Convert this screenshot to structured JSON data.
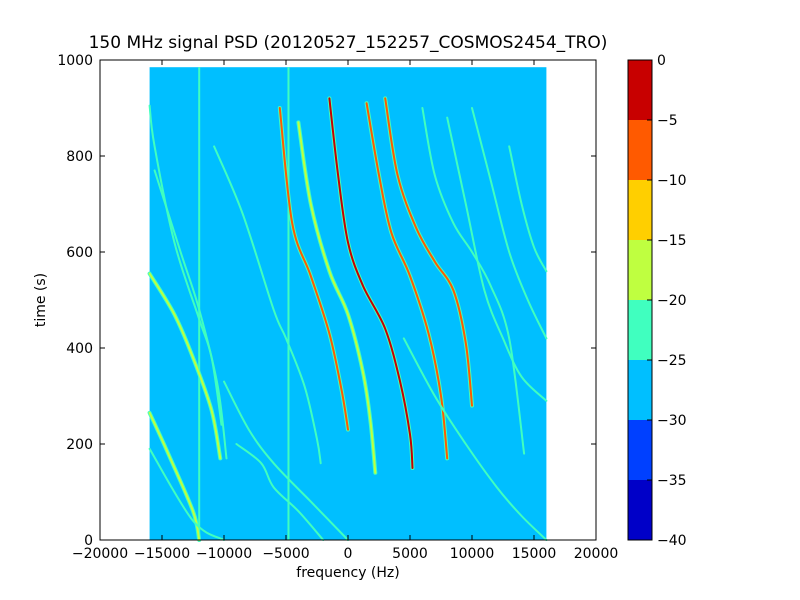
{
  "chart_data": {
    "type": "heatmap",
    "title": "150 MHz signal PSD (20120527_152257_COSMOS2454_TRO)",
    "xlabel": "frequency (Hz)",
    "ylabel": "time (s)",
    "xlim": [
      -20000,
      20000
    ],
    "ylim": [
      0,
      1000
    ],
    "xticks": [
      -20000,
      -15000,
      -10000,
      -5000,
      0,
      5000,
      10000,
      15000,
      20000
    ],
    "xtick_labels": [
      "−20000",
      "−15000",
      "−10000",
      "−5000",
      "0",
      "5000",
      "10000",
      "15000",
      "20000"
    ],
    "yticks": [
      0,
      200,
      400,
      600,
      800,
      1000
    ],
    "ytick_labels": [
      "0",
      "200",
      "400",
      "600",
      "800",
      "1000"
    ],
    "data_extent": {
      "x": [
        -16000,
        16000
      ],
      "y": [
        0,
        985
      ]
    },
    "background_level": -27.5,
    "colorbar": {
      "range": [
        -40,
        0
      ],
      "ticks": [
        0,
        -5,
        -10,
        -15,
        -20,
        -25,
        -30,
        -35,
        -40
      ],
      "tick_labels": [
        "0",
        "−5",
        "−10",
        "−15",
        "−20",
        "−25",
        "−30",
        "−35",
        "−40"
      ],
      "levels": [
        {
          "from": -40,
          "to": -35,
          "color": "#0000c8"
        },
        {
          "from": -35,
          "to": -30,
          "color": "#0040ff"
        },
        {
          "from": -30,
          "to": -25,
          "color": "#00bfff"
        },
        {
          "from": -25,
          "to": -20,
          "color": "#40ffbf"
        },
        {
          "from": -20,
          "to": -15,
          "color": "#bfff40"
        },
        {
          "from": -15,
          "to": -10,
          "color": "#ffcf00"
        },
        {
          "from": -10,
          "to": -5,
          "color": "#ff5a00"
        },
        {
          "from": -5,
          "to": 0,
          "color": "#c80000"
        }
      ]
    },
    "traces": [
      {
        "x": [
          -16000,
          -15600,
          -14000,
          -12000,
          -11000,
          -10200
        ],
        "y": [
          905,
          820,
          620,
          460,
          380,
          240
        ],
        "level": -22
      },
      {
        "x": [
          -16000,
          -14000,
          -12500,
          -11000,
          -10300
        ],
        "y": [
          555,
          470,
          380,
          270,
          170
        ],
        "level": -19
      },
      {
        "x": [
          -16000,
          -14500,
          -12500,
          -12000
        ],
        "y": [
          265,
          180,
          60,
          0
        ],
        "level": -19
      },
      {
        "x": [
          -16000,
          -12500,
          -10000
        ],
        "y": [
          190,
          40,
          0
        ],
        "level": -22
      },
      {
        "x": [
          -15600,
          -13500,
          -12000,
          -10500,
          -9800
        ],
        "y": [
          770,
          600,
          480,
          320,
          170
        ],
        "level": -21
      },
      {
        "x": [
          -10800,
          -8500,
          -6000,
          -5000,
          -3500,
          -2500,
          -2200
        ],
        "y": [
          820,
          680,
          480,
          420,
          320,
          210,
          160
        ],
        "level": -22
      },
      {
        "x": [
          -10000,
          -8000,
          -6000,
          -3000,
          0
        ],
        "y": [
          330,
          230,
          160,
          80,
          0
        ],
        "level": -23
      },
      {
        "x": [
          -9000,
          -7000,
          -6000,
          -4000,
          -2000
        ],
        "y": [
          200,
          160,
          110,
          60,
          0
        ],
        "level": -22
      },
      {
        "x": [
          -5500,
          -4500,
          -3000,
          -1500,
          -500,
          0
        ],
        "y": [
          900,
          660,
          550,
          430,
          310,
          230
        ],
        "level": -8
      },
      {
        "x": [
          -4000,
          -3000,
          -1500,
          0,
          1200,
          1800,
          2200
        ],
        "y": [
          870,
          700,
          560,
          470,
          350,
          250,
          140
        ],
        "level": -15
      },
      {
        "x": [
          -1500,
          -800,
          0,
          1200,
          3000,
          4200,
          5000,
          5200
        ],
        "y": [
          920,
          760,
          620,
          530,
          440,
          330,
          220,
          150
        ],
        "level": -3
      },
      {
        "x": [
          1500,
          2500,
          3500,
          5000,
          6500,
          7500,
          8000
        ],
        "y": [
          910,
          760,
          640,
          550,
          430,
          300,
          170
        ],
        "level": -6
      },
      {
        "x": [
          3000,
          4000,
          5500,
          7000,
          8500,
          9500,
          10000
        ],
        "y": [
          920,
          760,
          650,
          580,
          520,
          410,
          280
        ],
        "level": -5
      },
      {
        "x": [
          6000,
          7000,
          8500,
          10000,
          11500,
          13000,
          14200
        ],
        "y": [
          900,
          760,
          660,
          600,
          530,
          420,
          180
        ],
        "level": -20
      },
      {
        "x": [
          4500,
          7000,
          9500,
          12000,
          14000,
          16000
        ],
        "y": [
          420,
          300,
          200,
          110,
          50,
          0
        ],
        "level": -22
      },
      {
        "x": [
          8000,
          9500,
          11000,
          12500,
          14000,
          16000
        ],
        "y": [
          880,
          700,
          520,
          420,
          340,
          290
        ],
        "level": -21
      },
      {
        "x": [
          10000,
          11500,
          13000,
          14500,
          16000
        ],
        "y": [
          900,
          750,
          600,
          500,
          420
        ],
        "level": -20
      },
      {
        "x": [
          13000,
          14000,
          15000,
          16000
        ],
        "y": [
          820,
          700,
          610,
          560
        ],
        "level": -21
      }
    ],
    "vertical_lines": [
      {
        "x": -12000,
        "y": [
          0,
          985
        ],
        "level": -24
      },
      {
        "x": -4800,
        "y": [
          0,
          985
        ],
        "level": -22
      }
    ]
  }
}
